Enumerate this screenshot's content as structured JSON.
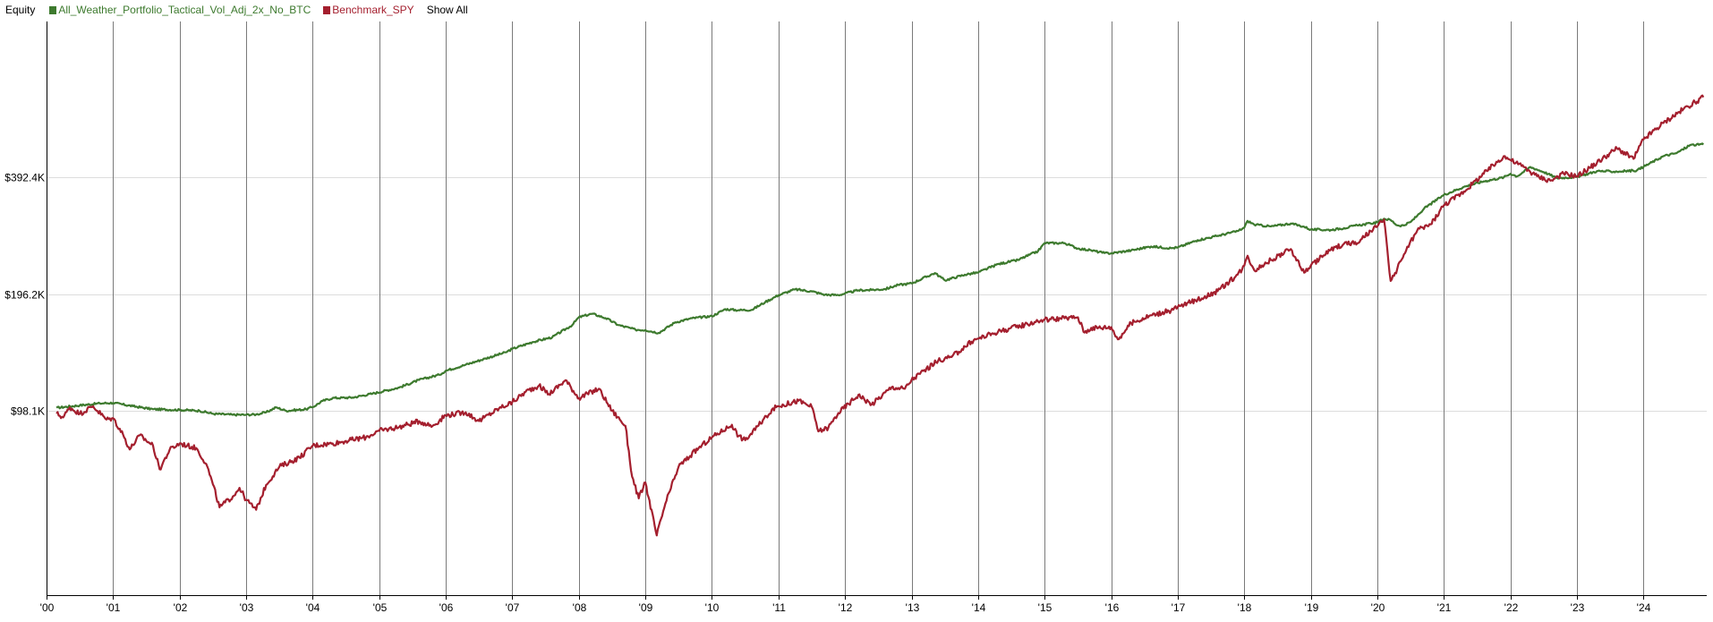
{
  "legend": {
    "title": "Equity",
    "series_1": "All_Weather_Portfolio_Tactical_Vol_Adj_2x_No_BTC",
    "series_2": "Benchmark_SPY",
    "show_all": "Show All"
  },
  "colors": {
    "series_1": "#3d7a2e",
    "series_2": "#a41f2e",
    "gridline": "#7a7a7a",
    "hgrid": "#dddddd",
    "axis": "#000000"
  },
  "chart_data": {
    "type": "line",
    "title": "Equity",
    "xlabel": "",
    "ylabel": "",
    "y_scale": "log",
    "x_range": [
      2000.0,
      2024.95
    ],
    "y_range": [
      33000,
      985000
    ],
    "x_ticks": [
      "'00",
      "'01",
      "'02",
      "'03",
      "'04",
      "'05",
      "'06",
      "'07",
      "'08",
      "'09",
      "'10",
      "'11",
      "'12",
      "'13",
      "'14",
      "'15",
      "'16",
      "'17",
      "'18",
      "'19",
      "'20",
      "'21",
      "'22",
      "'23",
      "'24"
    ],
    "y_ticks": [
      "$98.1K",
      "$196.2K",
      "$392.4K"
    ],
    "y_tick_values": [
      98100,
      196200,
      392400
    ],
    "grid": "vertical at year starts, horizontal at y ticks",
    "legend_position": "top-left",
    "series": [
      {
        "name": "All_Weather_Portfolio_Tactical_Vol_Adj_2x_No_BTC",
        "color": "#3d7a2e",
        "points": [
          [
            2000.15,
            100000
          ],
          [
            2000.5,
            101500
          ],
          [
            2000.8,
            102700
          ],
          [
            2001.0,
            103000
          ],
          [
            2001.3,
            101000
          ],
          [
            2001.6,
            99200
          ],
          [
            2002.0,
            98800
          ],
          [
            2002.3,
            98300
          ],
          [
            2002.5,
            96600
          ],
          [
            2002.8,
            96000
          ],
          [
            2003.0,
            96000
          ],
          [
            2003.15,
            96200
          ],
          [
            2003.3,
            97400
          ],
          [
            2003.45,
            100300
          ],
          [
            2003.6,
            98300
          ],
          [
            2003.9,
            99200
          ],
          [
            2004.0,
            100500
          ],
          [
            2004.15,
            104200
          ],
          [
            2004.3,
            106000
          ],
          [
            2004.6,
            106300
          ],
          [
            2004.9,
            108800
          ],
          [
            2005.3,
            112800
          ],
          [
            2005.6,
            118000
          ],
          [
            2005.9,
            121600
          ],
          [
            2006.0,
            124600
          ],
          [
            2006.3,
            129100
          ],
          [
            2006.6,
            134000
          ],
          [
            2006.9,
            138900
          ],
          [
            2007.0,
            141800
          ],
          [
            2007.3,
            147600
          ],
          [
            2007.6,
            151900
          ],
          [
            2007.9,
            163300
          ],
          [
            2008.0,
            171000
          ],
          [
            2008.2,
            174600
          ],
          [
            2008.4,
            170200
          ],
          [
            2008.6,
            163200
          ],
          [
            2008.85,
            158900
          ],
          [
            2009.0,
            158500
          ],
          [
            2009.2,
            155900
          ],
          [
            2009.45,
            166000
          ],
          [
            2009.7,
            170000
          ],
          [
            2010.0,
            172100
          ],
          [
            2010.2,
            179400
          ],
          [
            2010.4,
            178300
          ],
          [
            2010.6,
            178700
          ],
          [
            2010.8,
            187000
          ],
          [
            2011.0,
            194900
          ],
          [
            2011.25,
            201700
          ],
          [
            2011.5,
            199300
          ],
          [
            2011.7,
            195400
          ],
          [
            2011.9,
            195000
          ],
          [
            2012.2,
            200600
          ],
          [
            2012.4,
            201000
          ],
          [
            2012.6,
            202000
          ],
          [
            2012.8,
            207000
          ],
          [
            2013.0,
            209000
          ],
          [
            2013.35,
            222200
          ],
          [
            2013.5,
            212800
          ],
          [
            2013.8,
            220000
          ],
          [
            2014.0,
            222900
          ],
          [
            2014.3,
            234200
          ],
          [
            2014.6,
            240000
          ],
          [
            2014.9,
            252900
          ],
          [
            2015.0,
            265300
          ],
          [
            2015.3,
            265300
          ],
          [
            2015.5,
            256900
          ],
          [
            2015.7,
            254100
          ],
          [
            2015.9,
            250000
          ],
          [
            2016.0,
            249800
          ],
          [
            2016.3,
            254000
          ],
          [
            2016.6,
            260000
          ],
          [
            2016.9,
            257400
          ],
          [
            2017.0,
            258400
          ],
          [
            2017.3,
            270000
          ],
          [
            2017.6,
            276900
          ],
          [
            2017.9,
            284800
          ],
          [
            2018.0,
            290600
          ],
          [
            2018.05,
            302500
          ],
          [
            2018.15,
            295900
          ],
          [
            2018.4,
            292700
          ],
          [
            2018.7,
            297900
          ],
          [
            2018.9,
            292200
          ],
          [
            2019.0,
            287400
          ],
          [
            2019.3,
            286800
          ],
          [
            2019.5,
            290000
          ],
          [
            2019.7,
            294500
          ],
          [
            2019.9,
            298000
          ],
          [
            2020.0,
            300000
          ],
          [
            2020.1,
            306400
          ],
          [
            2020.2,
            304100
          ],
          [
            2020.3,
            294600
          ],
          [
            2020.4,
            294500
          ],
          [
            2020.5,
            300500
          ],
          [
            2020.6,
            312000
          ],
          [
            2020.7,
            325000
          ],
          [
            2021.0,
            353000
          ],
          [
            2021.3,
            370000
          ],
          [
            2021.6,
            382300
          ],
          [
            2021.9,
            391500
          ],
          [
            2022.0,
            400000
          ],
          [
            2022.1,
            393900
          ],
          [
            2022.3,
            416100
          ],
          [
            2022.5,
            404100
          ],
          [
            2022.7,
            389800
          ],
          [
            2023.0,
            392400
          ],
          [
            2023.3,
            406100
          ],
          [
            2023.6,
            405000
          ],
          [
            2023.9,
            408000
          ],
          [
            2024.0,
            416700
          ],
          [
            2024.3,
            444000
          ],
          [
            2024.5,
            452100
          ],
          [
            2024.7,
            474000
          ],
          [
            2024.9,
            475500
          ]
        ]
      },
      {
        "name": "Benchmark_SPY",
        "color": "#a41f2e",
        "points": [
          [
            2000.15,
            96700
          ],
          [
            2000.25,
            94500
          ],
          [
            2000.35,
            100300
          ],
          [
            2000.5,
            96600
          ],
          [
            2000.7,
            101000
          ],
          [
            2000.9,
            93300
          ],
          [
            2001.0,
            94100
          ],
          [
            2001.15,
            85400
          ],
          [
            2001.25,
            78200
          ],
          [
            2001.4,
            85000
          ],
          [
            2001.6,
            80000
          ],
          [
            2001.7,
            69500
          ],
          [
            2001.85,
            78000
          ],
          [
            2002.0,
            81000
          ],
          [
            2002.25,
            78800
          ],
          [
            2002.4,
            71800
          ],
          [
            2002.5,
            63600
          ],
          [
            2002.6,
            55500
          ],
          [
            2002.8,
            59200
          ],
          [
            2002.9,
            62300
          ],
          [
            2003.0,
            58000
          ],
          [
            2003.15,
            54700
          ],
          [
            2003.3,
            63400
          ],
          [
            2003.5,
            70600
          ],
          [
            2003.8,
            74500
          ],
          [
            2004.0,
            80000
          ],
          [
            2004.3,
            81000
          ],
          [
            2004.5,
            82200
          ],
          [
            2004.8,
            84000
          ],
          [
            2005.0,
            87300
          ],
          [
            2005.3,
            89300
          ],
          [
            2005.6,
            92400
          ],
          [
            2005.8,
            89800
          ],
          [
            2006.0,
            95700
          ],
          [
            2006.3,
            97400
          ],
          [
            2006.5,
            92500
          ],
          [
            2006.8,
            99700
          ],
          [
            2007.0,
            103400
          ],
          [
            2007.2,
            110000
          ],
          [
            2007.4,
            114100
          ],
          [
            2007.55,
            108500
          ],
          [
            2007.8,
            117800
          ],
          [
            2008.0,
            106000
          ],
          [
            2008.3,
            112000
          ],
          [
            2008.5,
            98300
          ],
          [
            2008.7,
            89900
          ],
          [
            2008.8,
            66500
          ],
          [
            2008.9,
            58500
          ],
          [
            2009.0,
            64300
          ],
          [
            2009.17,
            47000
          ],
          [
            2009.3,
            56700
          ],
          [
            2009.5,
            70700
          ],
          [
            2009.8,
            78800
          ],
          [
            2010.0,
            84000
          ],
          [
            2010.3,
            90500
          ],
          [
            2010.4,
            84600
          ],
          [
            2010.5,
            82600
          ],
          [
            2010.7,
            90000
          ],
          [
            2010.9,
            99000
          ],
          [
            2011.0,
            101000
          ],
          [
            2011.3,
            104300
          ],
          [
            2011.5,
            100600
          ],
          [
            2011.6,
            87000
          ],
          [
            2011.75,
            89000
          ],
          [
            2011.9,
            97000
          ],
          [
            2012.2,
            108000
          ],
          [
            2012.4,
            102000
          ],
          [
            2012.7,
            113000
          ],
          [
            2012.9,
            112000
          ],
          [
            2013.0,
            118000
          ],
          [
            2013.4,
            132300
          ],
          [
            2013.6,
            135100
          ],
          [
            2013.9,
            148000
          ],
          [
            2014.0,
            150700
          ],
          [
            2014.3,
            157000
          ],
          [
            2014.7,
            163700
          ],
          [
            2014.9,
            167000
          ],
          [
            2015.0,
            168700
          ],
          [
            2015.3,
            170000
          ],
          [
            2015.5,
            171000
          ],
          [
            2015.6,
            156200
          ],
          [
            2015.7,
            160500
          ],
          [
            2016.0,
            161200
          ],
          [
            2016.1,
            150000
          ],
          [
            2016.3,
            165000
          ],
          [
            2016.6,
            173000
          ],
          [
            2016.9,
            178000
          ],
          [
            2017.0,
            181400
          ],
          [
            2017.3,
            190000
          ],
          [
            2017.6,
            199600
          ],
          [
            2017.9,
            220000
          ],
          [
            2018.0,
            232000
          ],
          [
            2018.05,
            246000
          ],
          [
            2018.15,
            226000
          ],
          [
            2018.4,
            240000
          ],
          [
            2018.7,
            256000
          ],
          [
            2018.9,
            222600
          ],
          [
            2019.0,
            232300
          ],
          [
            2019.3,
            255000
          ],
          [
            2019.5,
            264400
          ],
          [
            2019.7,
            265000
          ],
          [
            2019.9,
            284800
          ],
          [
            2020.0,
            292700
          ],
          [
            2020.1,
            305000
          ],
          [
            2020.2,
            212000
          ],
          [
            2020.25,
            218400
          ],
          [
            2020.4,
            248100
          ],
          [
            2020.6,
            286000
          ],
          [
            2020.8,
            296300
          ],
          [
            2021.0,
            332000
          ],
          [
            2021.3,
            360000
          ],
          [
            2021.6,
            400000
          ],
          [
            2021.9,
            443800
          ],
          [
            2022.0,
            433900
          ],
          [
            2022.2,
            416100
          ],
          [
            2022.4,
            394000
          ],
          [
            2022.6,
            383700
          ],
          [
            2022.8,
            400300
          ],
          [
            2023.0,
            394000
          ],
          [
            2023.3,
            426500
          ],
          [
            2023.6,
            465000
          ],
          [
            2023.85,
            436700
          ],
          [
            2024.0,
            490000
          ],
          [
            2024.3,
            540000
          ],
          [
            2024.6,
            586300
          ],
          [
            2024.9,
            629000
          ]
        ]
      }
    ]
  }
}
